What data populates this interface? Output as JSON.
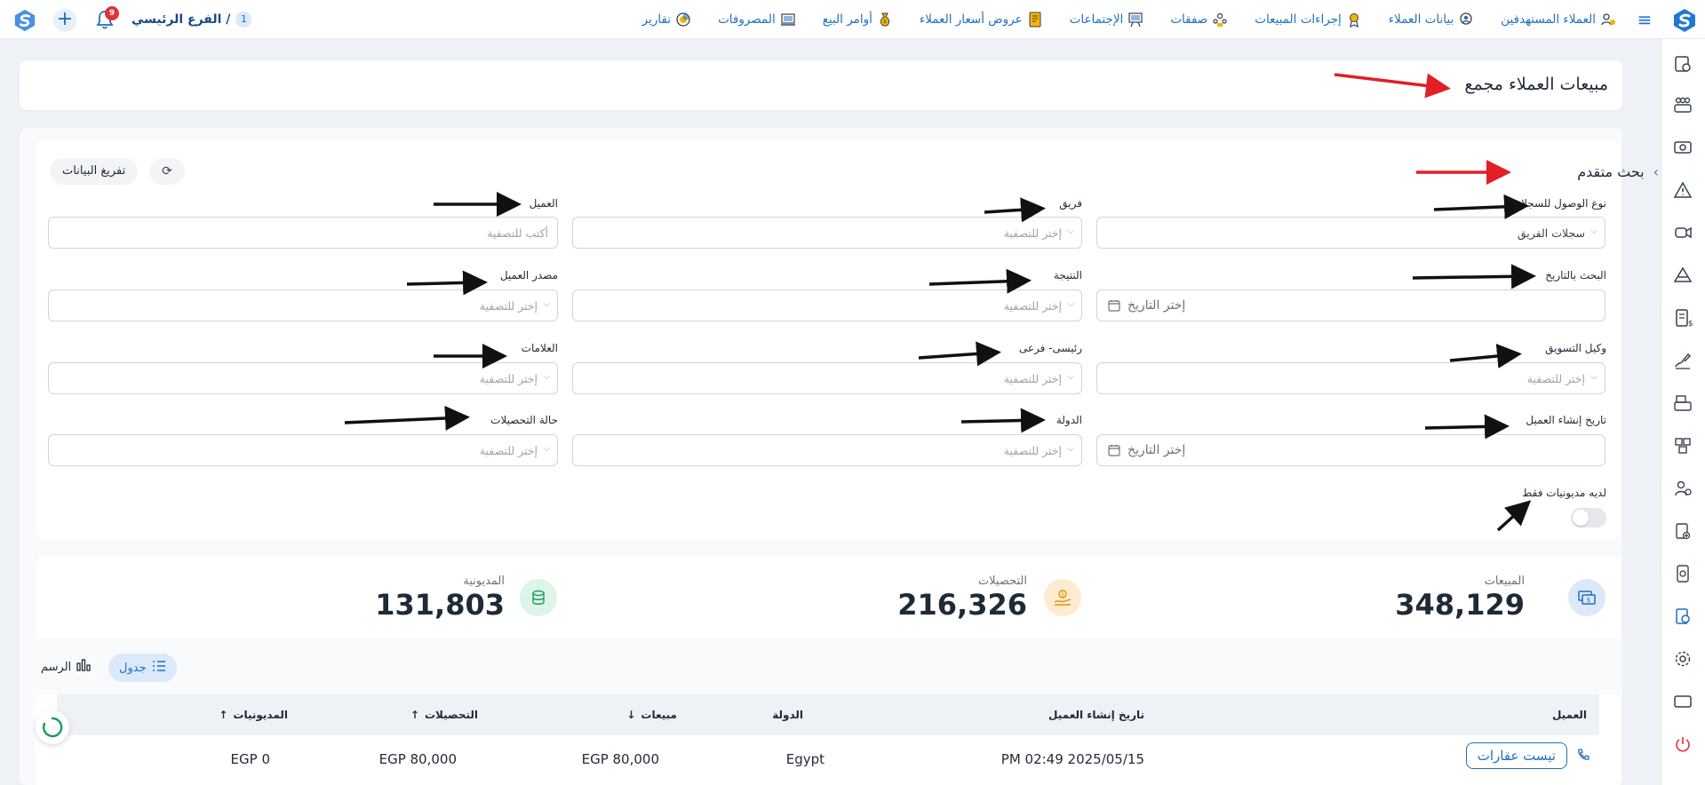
{
  "topbar": {
    "nav": [
      {
        "label": "العملاء المستهدفين",
        "icon": "target-customers-icon"
      },
      {
        "label": "بيانات العملاء",
        "icon": "customer-data-icon"
      },
      {
        "label": "إجراءات المبيعات",
        "icon": "sales-actions-icon"
      },
      {
        "label": "صفقات",
        "icon": "deals-icon"
      },
      {
        "label": "الإجتماعات",
        "icon": "meetings-icon"
      },
      {
        "label": "عروض أسعار العملاء",
        "icon": "quotes-icon"
      },
      {
        "label": "أوامر البيع",
        "icon": "sales-orders-icon"
      },
      {
        "label": "المصروفات",
        "icon": "expenses-icon"
      },
      {
        "label": "تقارير",
        "icon": "reports-icon"
      }
    ],
    "branch": {
      "name": "الفرع الرئيسي /",
      "number": "1"
    },
    "notifications_count": "9"
  },
  "page": {
    "title": "مبيعات العملاء مجمع"
  },
  "filters": {
    "title": "بحث متقدم",
    "clear_button": "تفريغ البيانات",
    "fields": {
      "access_type": {
        "label": "نوع الوصول للسجلات",
        "value": "سجلات الفريق"
      },
      "team": {
        "label": "فريق",
        "placeholder": "إختر للتصفية"
      },
      "client": {
        "label": "العميل",
        "placeholder": "أكتب للتصفية"
      },
      "date_search": {
        "label": "البحث بالتاريخ",
        "placeholder": "إختر التاريخ"
      },
      "result": {
        "label": "النتيجة",
        "placeholder": "إختر للتصفية"
      },
      "client_source": {
        "label": "مصدر العميل",
        "placeholder": "إختر للتصفية"
      },
      "marketing_agent": {
        "label": "وكيل التسويق",
        "placeholder": "إختر للتصفية"
      },
      "main_sub": {
        "label": "رئيسى- فرعى",
        "placeholder": "إختر للتصفية"
      },
      "tags": {
        "label": "العلامات",
        "placeholder": "إختر للتصفية"
      },
      "client_created": {
        "label": "تاريخ إنشاء العميل",
        "placeholder": "إختر التاريخ"
      },
      "country": {
        "label": "الدولة",
        "placeholder": "إختر للتصفية"
      },
      "collection_status": {
        "label": "حالة التحصيلات",
        "placeholder": "إختر للتصفية"
      }
    },
    "debts_only": {
      "label": "لديه مديونيات فقط",
      "on": false
    }
  },
  "stats": {
    "sales": {
      "label": "المبيعات",
      "value": "348,129",
      "color": "#dbe9fb"
    },
    "collections": {
      "label": "التحصيلات",
      "value": "216,326",
      "color": "#fdecd2"
    },
    "debts": {
      "label": "المديونية",
      "value": "131,803",
      "color": "#dcf5e6"
    }
  },
  "view": {
    "table_label": "جدول",
    "chart_label": "الرسم"
  },
  "table": {
    "headers": {
      "client": "العميل",
      "created": "تاريخ إنشاء العميل",
      "country": "الدولة",
      "sales": "مبيعات",
      "collections": "التحصيلات",
      "debts": "المديونيات"
    },
    "rows": [
      {
        "client": "تيست عقارات",
        "created": "PM 02:49 2025/05/15",
        "country": "Egypt",
        "sales": "EGP 80,000",
        "collections": "EGP 80,000",
        "debts": "EGP 0"
      }
    ]
  },
  "colors": {
    "accent": "#1f6fbf",
    "annotation_red": "#e31e24",
    "annotation_black": "#111111"
  }
}
